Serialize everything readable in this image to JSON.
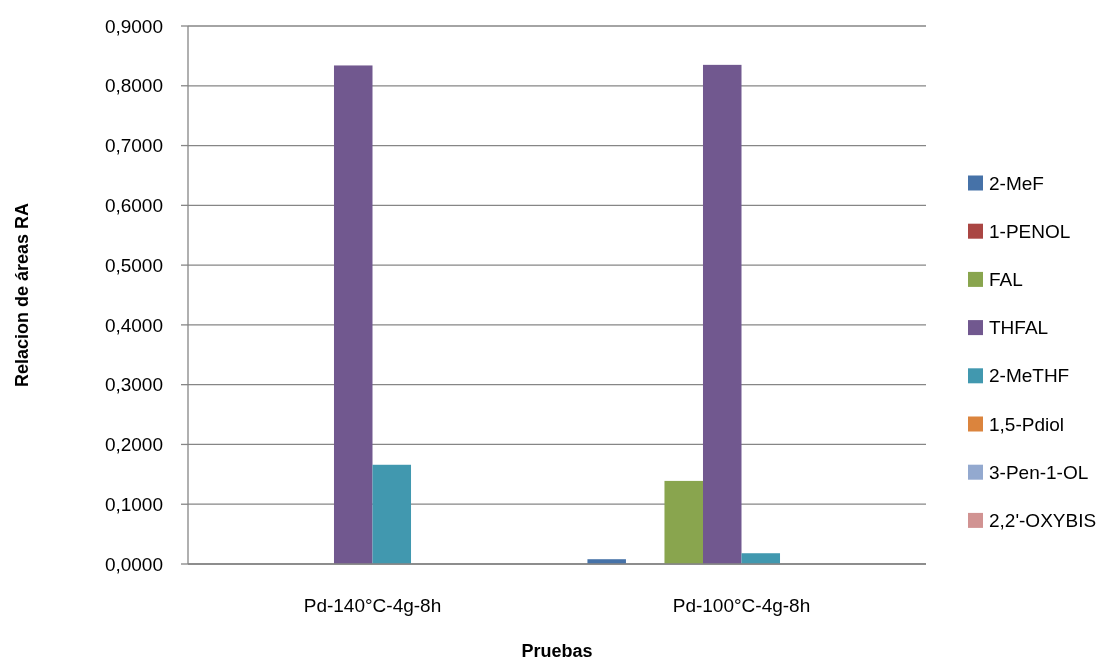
{
  "chart_data": {
    "type": "bar",
    "xlabel": "Pruebas",
    "ylabel": "Relacion de áreas RA",
    "categories": [
      "Pd-140°C-4g-8h",
      "Pd-100°C-4g-8h"
    ],
    "series": [
      {
        "name": "2-MeF",
        "color": "#4672a8",
        "values": [
          0,
          0.008
        ]
      },
      {
        "name": "1-PENOL",
        "color": "#aa4643",
        "values": [
          0,
          0
        ]
      },
      {
        "name": "FAL",
        "color": "#89a54e",
        "values": [
          0,
          0.139
        ]
      },
      {
        "name": "THFAL",
        "color": "#71588f",
        "values": [
          0.834,
          0.835
        ]
      },
      {
        "name": "2-MeTHF",
        "color": "#4198af",
        "values": [
          0.166,
          0.018
        ]
      },
      {
        "name": "1,5-Pdiol",
        "color": "#db843d",
        "values": [
          0,
          0
        ]
      },
      {
        "name": "3-Pen-1-OL",
        "color": "#93a9cf",
        "values": [
          0,
          0
        ]
      },
      {
        "name": "2,2'-OXYBIS",
        "color": "#d19392",
        "values": [
          0,
          0
        ]
      }
    ],
    "ylim": [
      0,
      0.9
    ],
    "yticks": [
      {
        "value": 0,
        "label": "0,0000"
      },
      {
        "value": 0.1,
        "label": "0,1000"
      },
      {
        "value": 0.2,
        "label": "0,2000"
      },
      {
        "value": 0.3,
        "label": "0,3000"
      },
      {
        "value": 0.4,
        "label": "0,4000"
      },
      {
        "value": 0.5,
        "label": "0,5000"
      },
      {
        "value": 0.6,
        "label": "0,6000"
      },
      {
        "value": 0.7,
        "label": "0,7000"
      },
      {
        "value": 0.8,
        "label": "0,8000"
      },
      {
        "value": 0.9,
        "label": "0,9000"
      }
    ],
    "grid": "y",
    "legend": "right"
  }
}
